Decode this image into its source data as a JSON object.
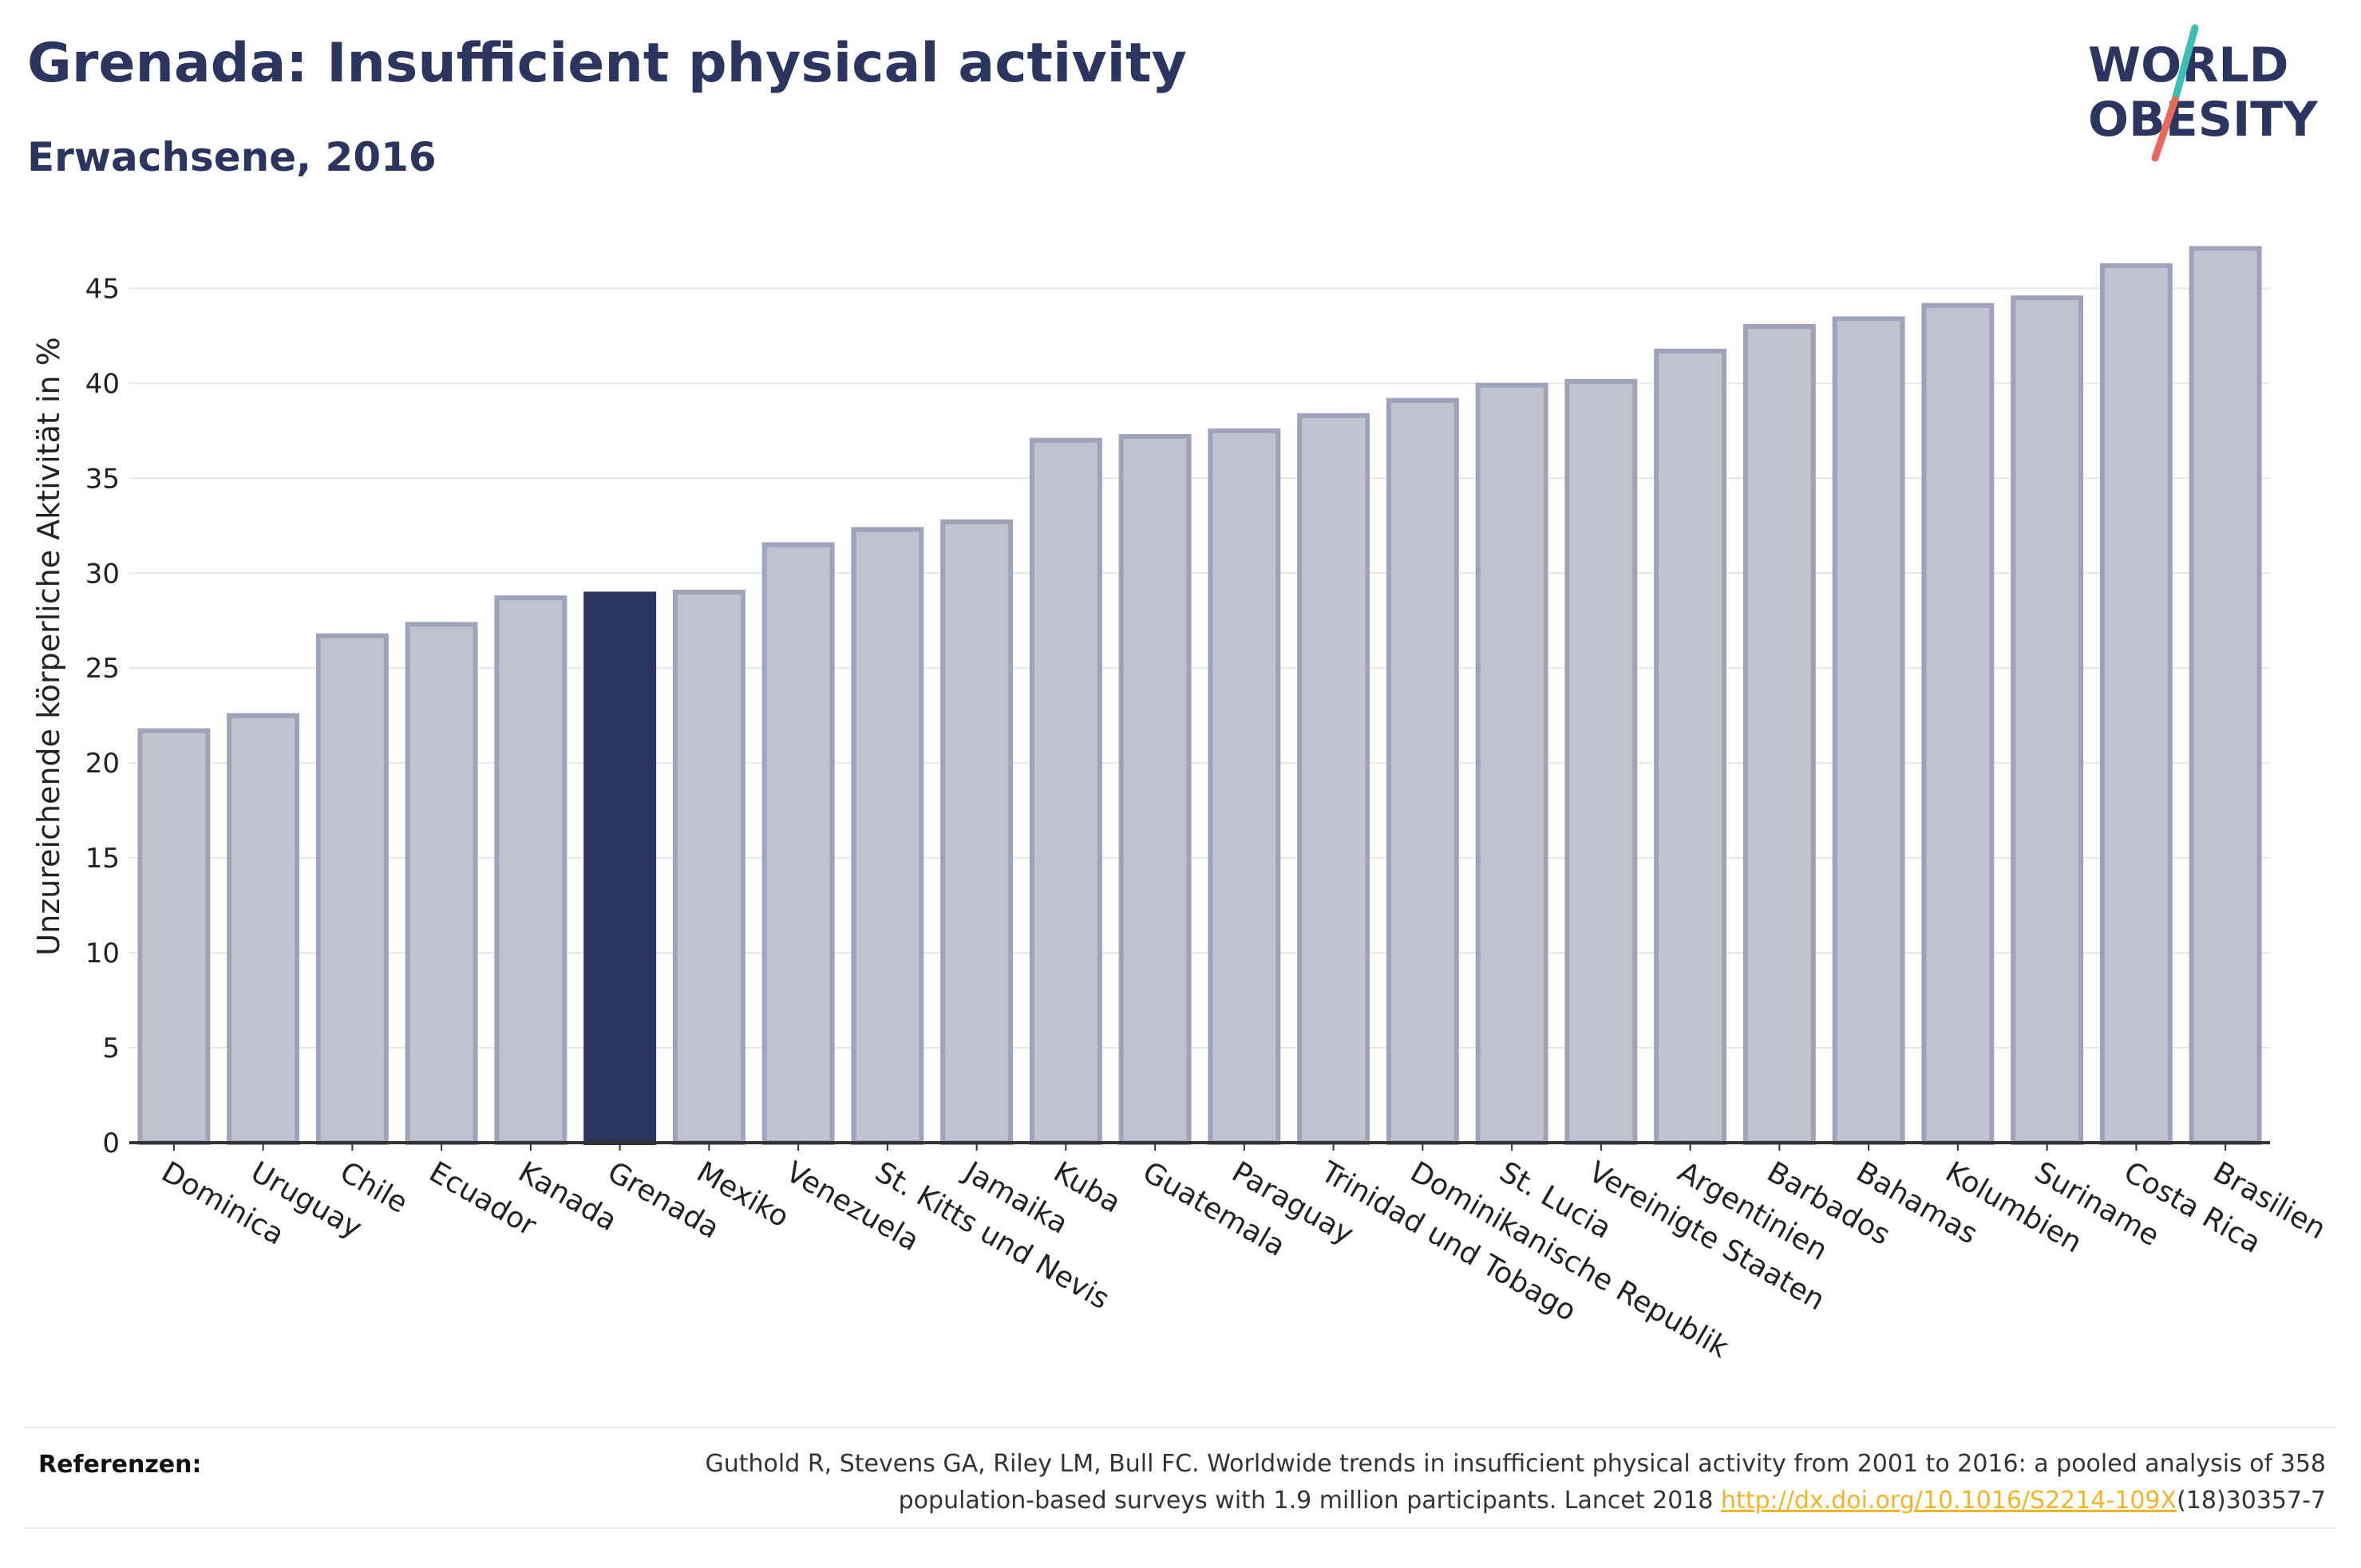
{
  "header": {
    "title": "Grenada: Insufficient physical activity",
    "subtitle": "Erwachsene, 2016"
  },
  "logo": {
    "line1": "WORLD",
    "line2": "OBESITY",
    "icon": "world-obesity-logo",
    "colors": {
      "text": "#2a3560",
      "slash_top": "#3bbfb2",
      "slash_bottom": "#e8685a"
    }
  },
  "chart_data": {
    "type": "bar",
    "categories": [
      "Dominica",
      "Uruguay",
      "Chile",
      "Ecuador",
      "Kanada",
      "Grenada",
      "Mexiko",
      "Venezuela",
      "St. Kitts und Nevis",
      "Jamaika",
      "Kuba",
      "Guatemala",
      "Paraguay",
      "Trinidad und Tobago",
      "Dominikanische Republik",
      "St. Lucia",
      "Vereinigte Staaten",
      "Argentinien",
      "Barbados",
      "Bahamas",
      "Kolumbien",
      "Suriname",
      "Costa Rica",
      "Brasilien"
    ],
    "values": [
      21.7,
      22.5,
      26.7,
      27.3,
      28.7,
      28.9,
      29.0,
      31.5,
      32.3,
      32.7,
      37.0,
      37.2,
      37.5,
      38.3,
      39.1,
      39.9,
      40.1,
      41.7,
      43.0,
      43.4,
      44.1,
      44.5,
      46.2,
      47.1
    ],
    "highlight": "Grenada",
    "xlabel": "",
    "ylabel": "Unzureichende körperliche Aktivität in %",
    "ylim": [
      0,
      48
    ],
    "yticks": [
      0,
      5,
      10,
      15,
      20,
      25,
      30,
      35,
      40,
      45
    ],
    "grid": true,
    "colors": {
      "bar": "#bfc2cf",
      "bar_edge": "#9ea3bb",
      "highlight": "#2a3560",
      "grid": "#e6e6e6",
      "axis": "#333333"
    }
  },
  "references": {
    "label": "Referenzen:",
    "line1": "Guthold R, Stevens GA, Riley LM, Bull FC. Worldwide trends in insufficient physical activity from 2001 to 2016: a pooled analysis of 358",
    "line2_before": "population-based surveys with 1.9 million participants. Lancet 2018 ",
    "link": "http://dx.doi.org/10.1016/S2214-109X",
    "line2_after": "(18)30357-7"
  }
}
